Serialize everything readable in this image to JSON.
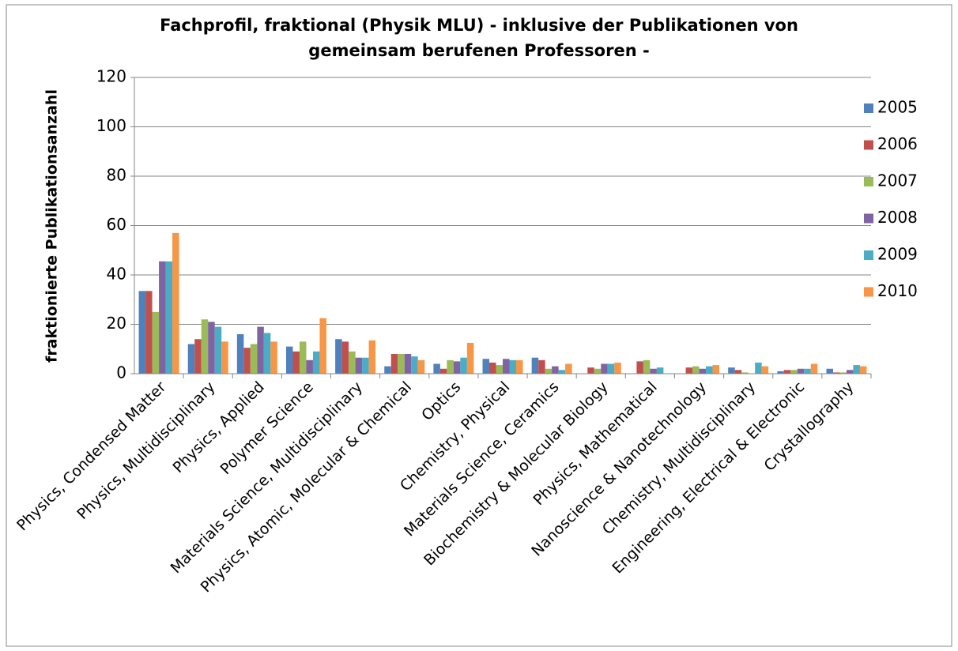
{
  "chart_data": {
    "type": "bar",
    "title": "Fachprofil, fraktional (Physik MLU) - inklusive der Publikationen von gemeinsam berufenen Professoren -",
    "y_label": "fraktionierte Publikationsanzahl",
    "categories": [
      "Physics, Condensed Matter",
      "Physics, Multidisciplinary",
      "Physics, Applied",
      "Polymer Science",
      "Materials Science, Multidisciplinary",
      "Physics, Atomic, Molecular & Chemical",
      "Optics",
      "Chemistry, Physical",
      "Materials Science, Ceramics",
      "Biochemistry & Molecular Biology",
      "Physics, Mathematical",
      "Nanoscience & Nanotechnology",
      "Chemistry, Multidisciplinary",
      "Engineering, Electrical & Electronic",
      "Crystallography"
    ],
    "series": [
      {
        "name": "2005",
        "color": "#4f81bd",
        "values": [
          33.5,
          12,
          16,
          11,
          14,
          3,
          4,
          6,
          6.5,
          0,
          0,
          0,
          2.5,
          1,
          2
        ]
      },
      {
        "name": "2006",
        "color": "#c0504d",
        "values": [
          33.5,
          14,
          10.5,
          9,
          13,
          8,
          2,
          4.5,
          5.5,
          2.5,
          5,
          2.5,
          1.5,
          1.5,
          0.5
        ]
      },
      {
        "name": "2007",
        "color": "#9bbb59",
        "values": [
          25,
          22,
          12,
          13,
          9,
          8,
          5.5,
          3.5,
          2,
          2,
          5.5,
          3,
          0.5,
          1.5,
          0.5
        ]
      },
      {
        "name": "2008",
        "color": "#8064a2",
        "values": [
          45.5,
          21,
          19,
          5.5,
          6.5,
          8,
          5,
          6,
          3,
          4,
          2,
          2,
          0,
          2,
          1.5
        ]
      },
      {
        "name": "2009",
        "color": "#4bacc6",
        "values": [
          45.5,
          19,
          16.5,
          9,
          6.5,
          7,
          6.5,
          5.5,
          1.5,
          4,
          2.5,
          3,
          4.5,
          2,
          3.5
        ]
      },
      {
        "name": "2010",
        "color": "#f79646",
        "values": [
          57,
          13,
          13,
          22.5,
          13.5,
          5.5,
          12.5,
          5.5,
          4,
          4.5,
          0,
          3.5,
          3,
          4,
          3
        ]
      }
    ],
    "ylim": [
      0,
      120
    ],
    "yticks": [
      0,
      20,
      40,
      60,
      80,
      100,
      120
    ],
    "grid": true,
    "legend": "right"
  }
}
